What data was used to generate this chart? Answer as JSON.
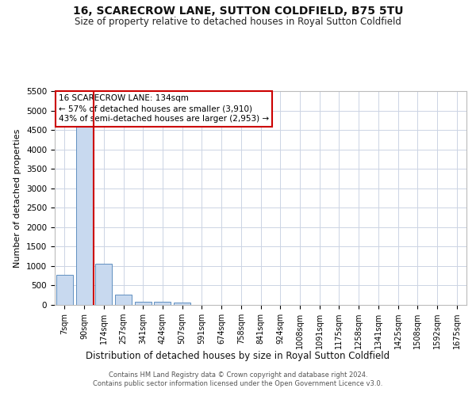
{
  "title": "16, SCARECROW LANE, SUTTON COLDFIELD, B75 5TU",
  "subtitle": "Size of property relative to detached houses in Royal Sutton Coldfield",
  "xlabel": "Distribution of detached houses by size in Royal Sutton Coldfield",
  "ylabel": "Number of detached properties",
  "footnote1": "Contains HM Land Registry data © Crown copyright and database right 2024.",
  "footnote2": "Contains public sector information licensed under the Open Government Licence v3.0.",
  "categories": [
    "7sqm",
    "90sqm",
    "174sqm",
    "257sqm",
    "341sqm",
    "424sqm",
    "507sqm",
    "591sqm",
    "674sqm",
    "758sqm",
    "841sqm",
    "924sqm",
    "1008sqm",
    "1091sqm",
    "1175sqm",
    "1258sqm",
    "1341sqm",
    "1425sqm",
    "1508sqm",
    "1592sqm",
    "1675sqm"
  ],
  "values": [
    780,
    4580,
    1060,
    270,
    90,
    75,
    55,
    0,
    0,
    0,
    0,
    0,
    0,
    0,
    0,
    0,
    0,
    0,
    0,
    0,
    0
  ],
  "bar_color": "#c8d9ef",
  "bar_edge_color": "#6090c0",
  "vline_x": 1.5,
  "vline_color": "#cc0000",
  "ylim_max": 5500,
  "yticks": [
    0,
    500,
    1000,
    1500,
    2000,
    2500,
    3000,
    3500,
    4000,
    4500,
    5000,
    5500
  ],
  "annotation_line1": "16 SCARECROW LANE: 134sqm",
  "annotation_line2": "← 57% of detached houses are smaller (3,910)",
  "annotation_line3": "43% of semi-detached houses are larger (2,953) →",
  "annotation_box_edgecolor": "#cc0000",
  "bg_color": "#ffffff",
  "grid_color": "#ccd4e4",
  "title_fontsize": 10,
  "subtitle_fontsize": 8.5,
  "ylabel_fontsize": 8,
  "xlabel_fontsize": 8.5,
  "annot_fontsize": 7.5,
  "tick_fontsize": 7,
  "ytick_fontsize": 7.5
}
